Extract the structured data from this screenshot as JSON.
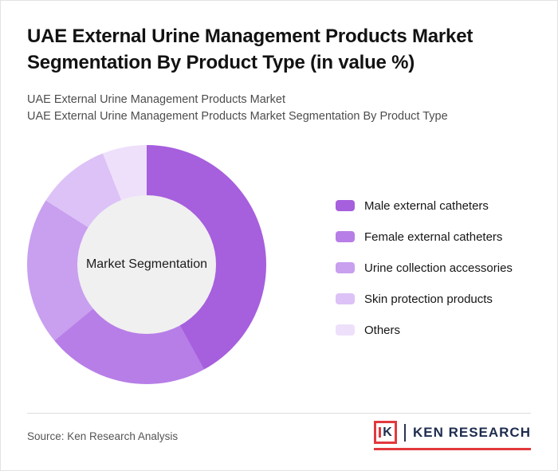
{
  "page": {
    "title": "UAE External Urine Management Products Market Segmentation By Product Type (in value %)",
    "subtitle_line1": "UAE External Urine Management Products Market",
    "subtitle_line2": "UAE External Urine Management Products Market Segmentation By Product Type",
    "source": "Source: Ken Research Analysis"
  },
  "chart_data": {
    "type": "pie",
    "variant": "donut",
    "title": "UAE External Urine Management Products Market Segmentation By Product Type (in value %)",
    "center_label": "Market Segmentation",
    "labels": [
      "Male external catheters",
      "Female external catheters",
      "Urine collection accessories",
      "Skin protection products",
      "Others"
    ],
    "values": [
      42,
      22,
      20,
      10,
      6
    ],
    "value_labels_shown": false,
    "values_note": "percent of total, estimated from arc angles (no numeric labels in image)",
    "colors": [
      "#a65fdd",
      "#b77ee7",
      "#c99ff0",
      "#dcc2f6",
      "#eee0fb"
    ],
    "legend_position": "right",
    "start_angle_deg": 0,
    "direction": "clockwise",
    "center_fill": "#f0f0f0"
  },
  "logo": {
    "monogram": "K",
    "name": "KEN RESEARCH",
    "accent_color": "#e2383d",
    "text_color": "#1e2c4e"
  }
}
